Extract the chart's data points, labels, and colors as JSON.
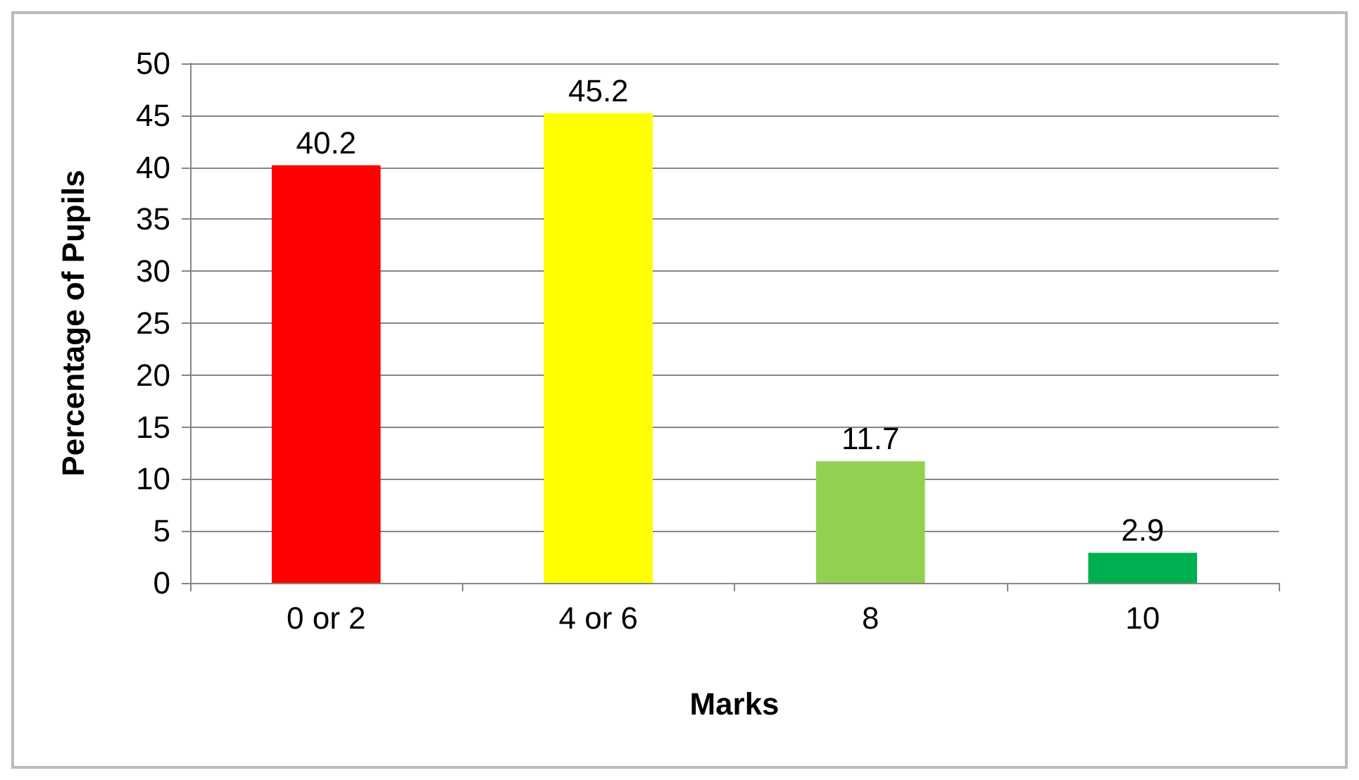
{
  "chart_data": {
    "type": "bar",
    "xlabel": "Marks",
    "ylabel": "Percentage of Pupils",
    "categories": [
      "0 or 2",
      "4 or 6",
      "8",
      "10"
    ],
    "values": [
      40.2,
      45.2,
      11.7,
      2.9
    ],
    "colors": [
      "#ff0000",
      "#ffff00",
      "#92d050",
      "#00b050"
    ],
    "ylim": [
      0,
      50
    ],
    "yticks": [
      0,
      5,
      10,
      15,
      20,
      25,
      30,
      35,
      40,
      45,
      50
    ],
    "grid": "y",
    "data_labels": true
  }
}
